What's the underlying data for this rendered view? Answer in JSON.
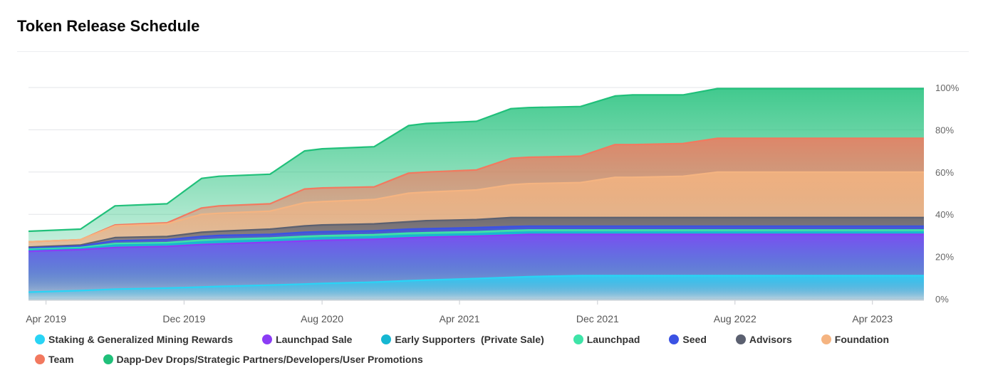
{
  "header": {
    "title": "Token Release Schedule"
  },
  "chart_data": {
    "type": "area",
    "stacked": false,
    "x": [
      "2019-03-01",
      "2019-06-01",
      "2019-08-01",
      "2019-11-01",
      "2020-01-01",
      "2020-02-01",
      "2020-05-01",
      "2020-07-01",
      "2020-08-01",
      "2020-11-01",
      "2021-01-01",
      "2021-02-01",
      "2021-05-01",
      "2021-07-01",
      "2021-08-01",
      "2021-11-01",
      "2022-01-01",
      "2022-02-01",
      "2022-05-01",
      "2022-07-01",
      "2022-08-01",
      "2022-11-01",
      "2023-01-01",
      "2023-02-01",
      "2023-05-01",
      "2023-07-01"
    ],
    "ylim": [
      0,
      100
    ],
    "y_ticks": [
      "0%",
      "20%",
      "40%",
      "60%",
      "80%",
      "100%"
    ],
    "x_ticks": [
      {
        "label": "Apr 2019",
        "date": "2019-04-01"
      },
      {
        "label": "Dec 2019",
        "date": "2019-12-01"
      },
      {
        "label": "Aug 2020",
        "date": "2020-08-01"
      },
      {
        "label": "Apr 2021",
        "date": "2021-04-01"
      },
      {
        "label": "Dec 2021",
        "date": "2021-12-01"
      },
      {
        "label": "Aug 2022",
        "date": "2022-08-01"
      },
      {
        "label": "Apr 2023",
        "date": "2023-04-01"
      }
    ],
    "grid": true,
    "legend_position": "bottom",
    "series": [
      {
        "name": "Dapp-Dev Drops/Strategic Partners/Developers/User Promotions",
        "color": "#20c07a",
        "values": [
          32,
          33,
          44,
          45,
          57,
          58,
          59,
          70,
          71,
          72,
          82,
          83,
          84,
          90,
          90.5,
          91,
          96,
          96.5,
          96.5,
          99.5,
          99.5,
          99.5,
          99.5,
          99.5,
          99.5,
          99.5
        ]
      },
      {
        "name": "Team",
        "color": "#f2795f",
        "values": [
          27,
          28,
          35,
          36,
          43,
          44,
          45,
          52,
          52.5,
          53,
          59.5,
          60,
          61,
          66.5,
          67,
          67.5,
          73,
          73,
          73.5,
          76,
          76,
          76,
          76,
          76,
          76,
          76
        ]
      },
      {
        "name": "Foundation",
        "color": "#f5b481",
        "values": [
          27,
          28,
          34.5,
          35.5,
          40,
          40.5,
          41.5,
          45.5,
          46,
          47,
          50,
          50.5,
          51.5,
          54,
          54.5,
          55,
          57.5,
          57.5,
          58,
          60,
          60,
          60,
          60,
          60,
          60,
          60
        ]
      },
      {
        "name": "Advisors",
        "color": "#5b6070",
        "values": [
          24.5,
          25.5,
          29,
          29.5,
          31.5,
          32,
          33,
          34.5,
          35,
          35.5,
          36.5,
          37,
          37.5,
          38.5,
          38.5,
          38.5,
          38.5,
          38.5,
          38.5,
          38.5,
          38.5,
          38.5,
          38.5,
          38.5,
          38.5,
          38.5
        ]
      },
      {
        "name": "Seed",
        "color": "#3b52e4",
        "values": [
          24,
          25,
          27.5,
          28,
          29.5,
          30,
          30.5,
          31.5,
          31.8,
          32.2,
          33,
          33.2,
          33.7,
          34.2,
          34.4,
          34.4,
          34.4,
          34.4,
          34.4,
          34.4,
          34.4,
          34.4,
          34.4,
          34.4,
          34.4,
          34.4
        ]
      },
      {
        "name": "Launchpad",
        "color": "#3ee4a8",
        "values": [
          23.5,
          24.3,
          26.2,
          26.6,
          27.8,
          28.2,
          28.8,
          29.6,
          29.9,
          30.4,
          31.1,
          31.3,
          31.8,
          32.4,
          32.6,
          32.6,
          32.6,
          32.6,
          32.6,
          32.6,
          32.6,
          32.6,
          32.6,
          32.6,
          32.6,
          32.6
        ]
      },
      {
        "name": "Early Supporters  (Private Sale)",
        "color": "#16b7d2",
        "values": [
          23,
          23.8,
          25.4,
          25.8,
          26.8,
          27.1,
          27.7,
          28.5,
          28.8,
          29.3,
          30,
          30.2,
          30.7,
          31.3,
          31.5,
          31.5,
          31.5,
          31.5,
          31.5,
          31.5,
          31.5,
          31.5,
          31.5,
          31.5,
          31.5,
          31.5
        ]
      },
      {
        "name": "Launchpad Sale",
        "color": "#8b3cf5",
        "values": [
          22.5,
          23.3,
          24.3,
          24.8,
          25.7,
          26,
          26.8,
          27.4,
          27.7,
          28.2,
          28.9,
          29.2,
          29.7,
          30.2,
          30.5,
          30.5,
          30.5,
          30.5,
          30.5,
          30.5,
          30.5,
          30.5,
          30.5,
          30.5,
          30.5,
          30.5
        ]
      },
      {
        "name": "Staking & Generalized Mining Rewards",
        "color": "#29d4f5",
        "values": [
          3.2,
          3.9,
          4.6,
          5.1,
          5.6,
          5.9,
          6.5,
          7.0,
          7.3,
          7.9,
          8.6,
          8.9,
          9.6,
          10.2,
          10.5,
          11,
          11,
          11,
          11,
          11,
          11,
          11,
          11,
          11,
          11,
          11
        ]
      }
    ],
    "legend_order": [
      "Staking & Generalized Mining Rewards",
      "Launchpad Sale",
      "Early Supporters  (Private Sale)",
      "Launchpad",
      "Seed",
      "Advisors",
      "Foundation",
      "Team",
      "Dapp-Dev Drops/Strategic Partners/Developers/User Promotions"
    ]
  }
}
